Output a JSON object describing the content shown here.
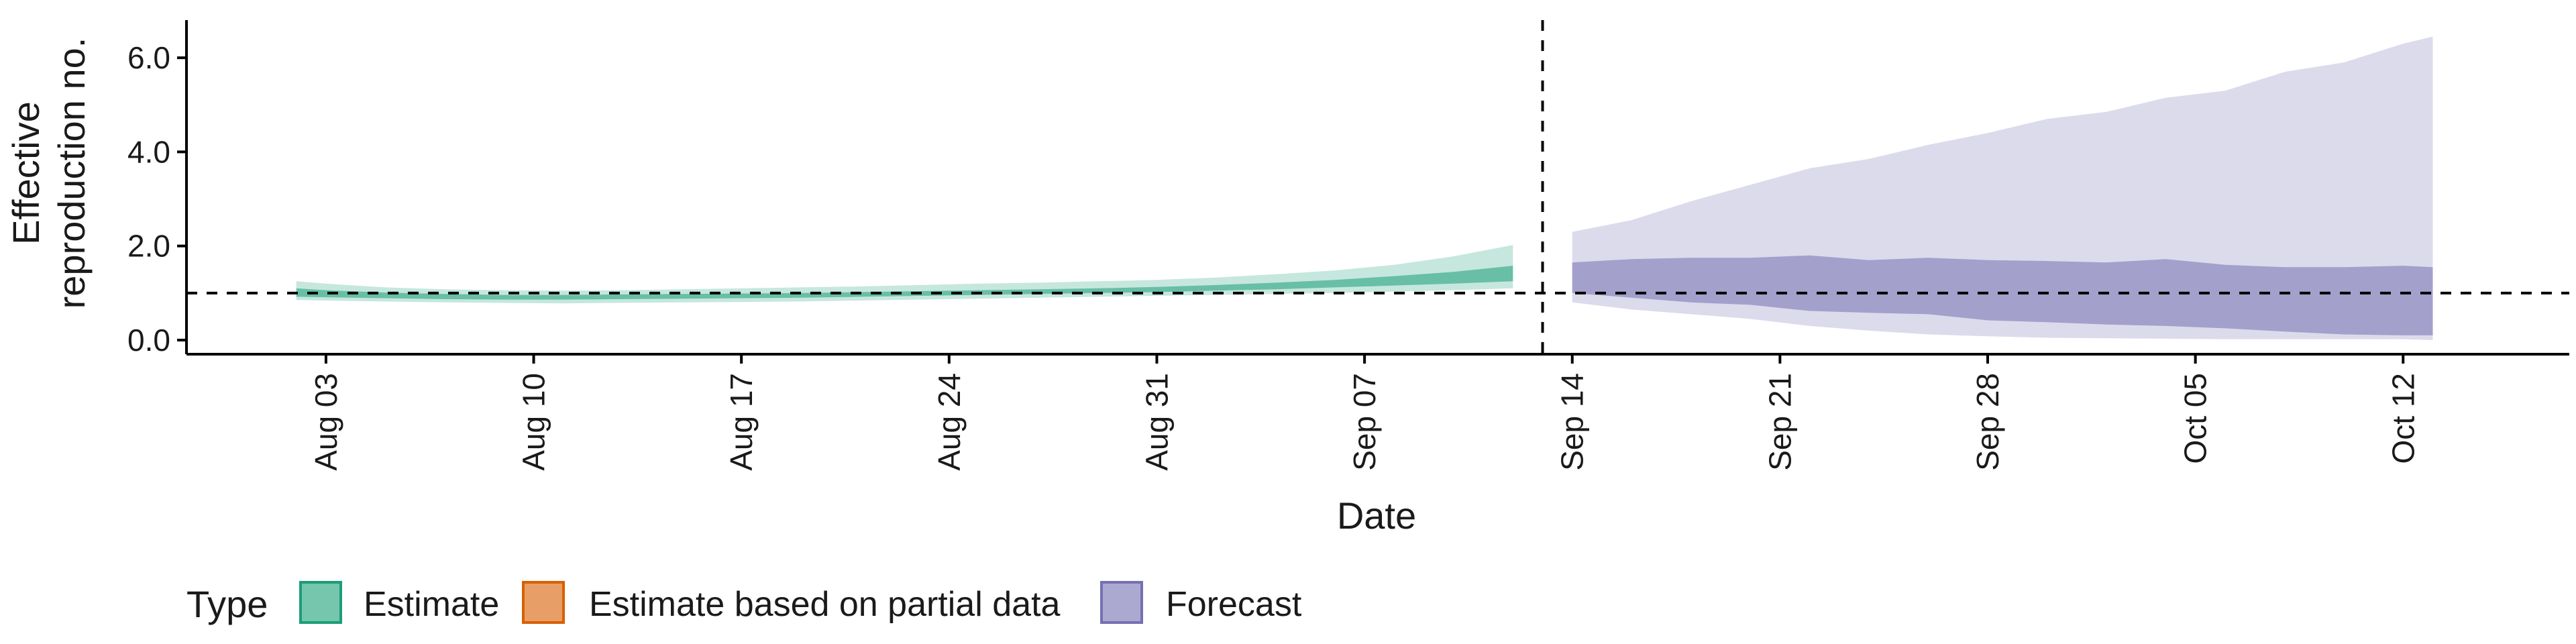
{
  "chart_data": {
    "type": "area",
    "xlabel": "Date",
    "ylabel_lines": [
      "Effective",
      "reproduction no."
    ],
    "x_ticks": [
      "Aug 03",
      "Aug 10",
      "Aug 17",
      "Aug 24",
      "Aug 31",
      "Sep 07",
      "Sep 14",
      "Sep 21",
      "Sep 28",
      "Oct 05",
      "Oct 12"
    ],
    "x_tick_days": [
      2,
      9,
      16,
      23,
      30,
      37,
      44,
      51,
      58,
      65,
      72
    ],
    "x_range_days": [
      -2.7,
      77.6
    ],
    "y_ticks": [
      "0.0",
      "2.0",
      "4.0",
      "6.0"
    ],
    "y_tick_values": [
      0,
      2,
      4,
      6
    ],
    "ylim": [
      -0.3,
      6.8
    ],
    "reference_line_y": 1.0,
    "forecast_start_day": 43,
    "legend": {
      "title": "Type",
      "position": "bottom",
      "items": [
        {
          "label": "Estimate",
          "fill": "#1b9e77",
          "stroke": "#1b9e77"
        },
        {
          "label": "Estimate based on partial data",
          "fill": "#d95f02",
          "stroke": "#d95f02"
        },
        {
          "label": "Forecast",
          "fill": "#7570b3",
          "stroke": "#7570b3"
        }
      ]
    },
    "series": [
      {
        "name": "Estimate",
        "color": "#1b9e77",
        "x": [
          1,
          2,
          4,
          6,
          8,
          10,
          12,
          14,
          16,
          18,
          20,
          22,
          24,
          26,
          28,
          30,
          32,
          34,
          36,
          38,
          40,
          42
        ],
        "outer_lower": [
          0.85,
          0.84,
          0.82,
          0.8,
          0.79,
          0.78,
          0.79,
          0.8,
          0.81,
          0.82,
          0.84,
          0.86,
          0.88,
          0.9,
          0.92,
          0.94,
          0.96,
          0.98,
          1.0,
          1.03,
          1.06,
          1.1
        ],
        "outer_upper": [
          1.25,
          1.2,
          1.12,
          1.08,
          1.06,
          1.05,
          1.06,
          1.08,
          1.1,
          1.12,
          1.14,
          1.17,
          1.2,
          1.22,
          1.25,
          1.28,
          1.33,
          1.4,
          1.48,
          1.6,
          1.78,
          2.02
        ],
        "inner_lower": [
          0.92,
          0.91,
          0.89,
          0.87,
          0.86,
          0.86,
          0.87,
          0.88,
          0.89,
          0.9,
          0.92,
          0.94,
          0.96,
          0.98,
          1.0,
          1.02,
          1.05,
          1.08,
          1.12,
          1.16,
          1.2,
          1.25
        ],
        "inner_upper": [
          1.1,
          1.06,
          1.01,
          0.98,
          0.96,
          0.96,
          0.97,
          0.98,
          0.99,
          1.0,
          1.02,
          1.04,
          1.06,
          1.08,
          1.1,
          1.13,
          1.17,
          1.22,
          1.28,
          1.36,
          1.45,
          1.58
        ]
      },
      {
        "name": "Forecast",
        "color": "#7570b3",
        "x": [
          44,
          46,
          48,
          50,
          52,
          54,
          56,
          58,
          60,
          62,
          64,
          66,
          68,
          70,
          72,
          73
        ],
        "outer_lower": [
          0.8,
          0.65,
          0.55,
          0.45,
          0.3,
          0.2,
          0.12,
          0.08,
          0.05,
          0.04,
          0.03,
          0.02,
          0.02,
          0.02,
          0.02,
          0.0
        ],
        "outer_upper": [
          2.3,
          2.55,
          2.95,
          3.3,
          3.65,
          3.85,
          4.15,
          4.4,
          4.7,
          4.85,
          5.15,
          5.3,
          5.7,
          5.9,
          6.3,
          6.45
        ],
        "inner_lower": [
          1.0,
          0.9,
          0.8,
          0.75,
          0.62,
          0.58,
          0.55,
          0.42,
          0.38,
          0.33,
          0.3,
          0.25,
          0.18,
          0.12,
          0.1,
          0.1
        ],
        "inner_upper": [
          1.65,
          1.72,
          1.75,
          1.75,
          1.8,
          1.7,
          1.75,
          1.7,
          1.68,
          1.65,
          1.72,
          1.6,
          1.55,
          1.55,
          1.58,
          1.55
        ]
      }
    ]
  }
}
